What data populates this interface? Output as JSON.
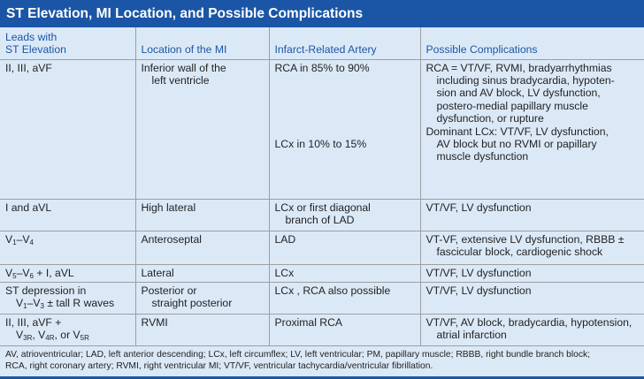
{
  "title": "ST Elevation, MI Location, and Possible Complications",
  "headers": {
    "leads_line1": "Leads with",
    "leads_line2": "ST Elevation",
    "location": "Location of the MI",
    "artery": "Infarct-Related Artery",
    "complications": "Possible Complications"
  },
  "rows": [
    {
      "leads": "II, III, aVF",
      "location_line1": "Inferior wall of the",
      "location_line2": "left ventricle",
      "artery_a": "RCA in 85% to 90%",
      "artery_b": "LCx in 10% to 15%",
      "comp_a1": "RCA = VT/VF, RVMI, bradyarrhythmias",
      "comp_a2": "including sinus bradycardia, hypoten-",
      "comp_a3": "sion and AV block, LV dysfunction,",
      "comp_a4": "postero-medial papillary muscle",
      "comp_a5": "dysfunction, or rupture",
      "comp_b1": "Dominant LCx: VT/VF, LV dysfunction,",
      "comp_b2": "AV block but no RVMI or papillary",
      "comp_b3": "muscle dysfunction"
    },
    {
      "leads": "I and aVL",
      "location": "High lateral",
      "artery_line1": "LCx or first diagonal",
      "artery_line2": "branch of LAD",
      "complications": "VT/VF, LV dysfunction"
    },
    {
      "leads_v": "V",
      "leads_sub1": "1",
      "leads_dash": "–V",
      "leads_sub2": "4",
      "location": "Anteroseptal",
      "artery": "LAD",
      "comp_line1": "VT-VF, extensive LV dysfunction, RBBB ±",
      "comp_line2": "fascicular block, cardiogenic shock"
    },
    {
      "leads_v": "V",
      "leads_sub1": "5",
      "leads_dash": "–V",
      "leads_sub2": "6",
      "leads_rest": " + I, aVL",
      "location": "Lateral",
      "artery": "LCx",
      "complications": "VT/VF, LV dysfunction"
    },
    {
      "leads_line1": "ST depression in",
      "leads_v": "V",
      "leads_sub1": "1",
      "leads_dash": "–V",
      "leads_sub2": "3",
      "leads_rest": " ± tall R waves",
      "location_line1": "Posterior or",
      "location_line2": "straight posterior",
      "artery": "LCx , RCA also possible",
      "complications": "VT/VF, LV dysfunction"
    },
    {
      "leads_line1": "II, III, aVF +",
      "leads_v1": "V",
      "leads_sub1": "3R",
      "leads_sep1": ", V",
      "leads_sub2": "4R",
      "leads_sep2": ", or V",
      "leads_sub3": "5R",
      "location": "RVMI",
      "artery": "Proximal RCA",
      "comp_line1": "VT/VF, AV block, bradycardia, hypotension,",
      "comp_line2": "atrial infarction"
    }
  ],
  "footnote_line1": "AV, atrioventricular; LAD, left anterior descending; LCx, left circumflex; LV, left ventricular; PM, papillary muscle; RBBB, right bundle branch block;",
  "footnote_line2": "RCA, right coronary artery; RVMI, right ventricular MI; VT/VF, ventricular tachycardia/ventricular fibrillation.",
  "colors": {
    "title_bar": "#1b56a6",
    "background": "#dbe9f7",
    "header_text": "#1b56a6",
    "rule": "#9e9e9e"
  }
}
